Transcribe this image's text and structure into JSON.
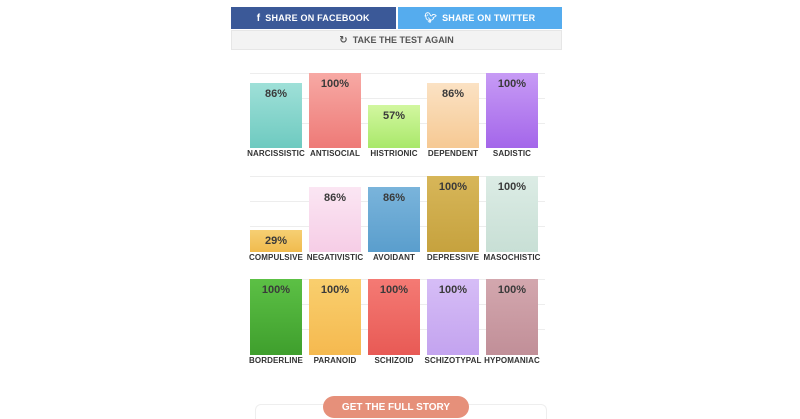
{
  "share": {
    "facebook_label": "SHARE ON FACEBOOK",
    "twitter_label": "SHARE ON TWITTER",
    "retake_label": "TAKE THE TEST AGAIN"
  },
  "cta": {
    "label": "GET THE FULL STORY"
  },
  "colors": {
    "facebook": "#3b5998",
    "twitter": "#55acee",
    "cta": "#e6907a"
  },
  "chart_data": [
    {
      "type": "bar",
      "ylim": [
        0,
        100
      ],
      "categories": [
        "NARCISSISTIC",
        "ANTISOCIAL",
        "HISTRIONIC",
        "DEPENDENT",
        "SADISTIC"
      ],
      "values": [
        86,
        100,
        57,
        86,
        100
      ],
      "labels": [
        "86%",
        "100%",
        "57%",
        "86%",
        "100%"
      ],
      "colors": [
        [
          "#9fe0d8",
          "#6ecac0"
        ],
        [
          "#f7a9a4",
          "#ee7a77"
        ],
        [
          "#d2f7a0",
          "#a9e86a"
        ],
        [
          "#fbe2c4",
          "#f6c993"
        ],
        [
          "#c79bf5",
          "#a466ea"
        ]
      ]
    },
    {
      "type": "bar",
      "ylim": [
        0,
        100
      ],
      "categories": [
        "COMPULSIVE",
        "NEGATIVISTIC",
        "AVOIDANT",
        "DEPRESSIVE",
        "MASOCHISTIC"
      ],
      "values": [
        29,
        86,
        86,
        100,
        100
      ],
      "labels": [
        "29%",
        "86%",
        "86%",
        "100%",
        "100%"
      ],
      "colors": [
        [
          "#f6cf73",
          "#f0bb4e"
        ],
        [
          "#fbe6f3",
          "#f6cde6"
        ],
        [
          "#7ab4db",
          "#5a9ecd"
        ],
        [
          "#d7b659",
          "#c6a23e"
        ],
        [
          "#dcece5",
          "#c8dfd5"
        ]
      ]
    },
    {
      "type": "bar",
      "ylim": [
        0,
        100
      ],
      "categories": [
        "BORDERLINE",
        "PARANOID",
        "SCHIZOID",
        "SCHIZOTYPAL",
        "HYPOMANIAC"
      ],
      "values": [
        100,
        100,
        100,
        100,
        100
      ],
      "labels": [
        "100%",
        "100%",
        "100%",
        "100%",
        "100%"
      ],
      "colors": [
        [
          "#5cc045",
          "#3f9f2d"
        ],
        [
          "#f9cf6e",
          "#f5b94f"
        ],
        [
          "#f47a74",
          "#e85a55"
        ],
        [
          "#d6bdf6",
          "#c3a3ef"
        ],
        [
          "#d3a7ae",
          "#c18f98"
        ]
      ]
    }
  ]
}
